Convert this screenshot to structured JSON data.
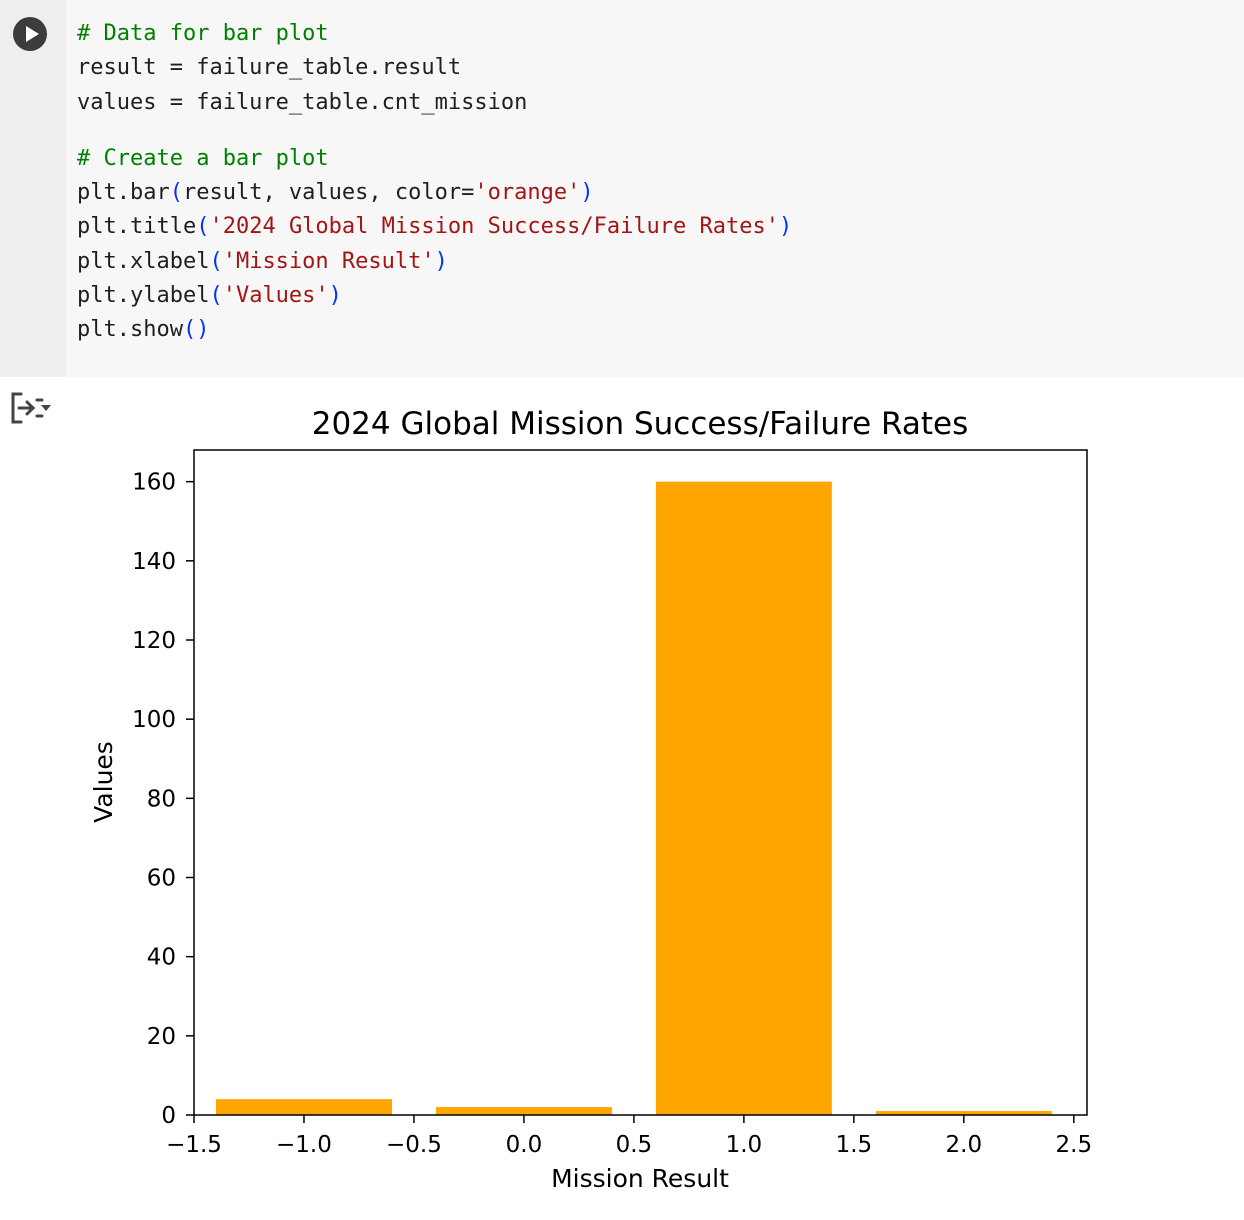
{
  "code_cell": {
    "lines": [
      [
        {
          "t": "# Data for bar plot",
          "c": "cm"
        }
      ],
      [
        {
          "t": "result = failure_table.result",
          "c": ""
        }
      ],
      [
        {
          "t": "values = failure_table.cnt_mission",
          "c": ""
        }
      ],
      [],
      [
        {
          "t": "# Create a bar plot",
          "c": "cm"
        }
      ],
      [
        {
          "t": "plt.bar",
          "c": ""
        },
        {
          "t": "(",
          "c": "pr"
        },
        {
          "t": "result, values, color=",
          "c": ""
        },
        {
          "t": "'orange'",
          "c": "st"
        },
        {
          "t": ")",
          "c": "pr"
        }
      ],
      [
        {
          "t": "plt.title",
          "c": ""
        },
        {
          "t": "(",
          "c": "pr"
        },
        {
          "t": "'2024 Global Mission Success/Failure Rates'",
          "c": "st"
        },
        {
          "t": ")",
          "c": "pr"
        }
      ],
      [
        {
          "t": "plt.xlabel",
          "c": ""
        },
        {
          "t": "(",
          "c": "pr"
        },
        {
          "t": "'Mission Result'",
          "c": "st"
        },
        {
          "t": ")",
          "c": "pr"
        }
      ],
      [
        {
          "t": "plt.ylabel",
          "c": ""
        },
        {
          "t": "(",
          "c": "pr"
        },
        {
          "t": "'Values'",
          "c": "st"
        },
        {
          "t": ")",
          "c": "pr"
        }
      ],
      [
        {
          "t": "plt.show",
          "c": ""
        },
        {
          "t": "()",
          "c": "pr"
        }
      ]
    ]
  },
  "chart_data": {
    "type": "bar",
    "title": "2024 Global Mission Success/Failure Rates",
    "xlabel": "Mission Result",
    "ylabel": "Values",
    "x": [
      -1,
      0,
      1,
      2
    ],
    "values": [
      4,
      2,
      160,
      1
    ],
    "bar_width": 0.8,
    "bar_color": "#ffa500",
    "xlim": [
      -1.5,
      2.56
    ],
    "ylim": [
      0,
      168
    ],
    "xticks": [
      -1.5,
      -1.0,
      -0.5,
      0.0,
      0.5,
      1.0,
      1.5,
      2.0,
      2.5
    ],
    "xtick_labels": [
      "−1.5",
      "−1.0",
      "−0.5",
      "0.0",
      "0.5",
      "1.0",
      "1.5",
      "2.0",
      "2.5"
    ],
    "yticks": [
      0,
      20,
      40,
      60,
      80,
      100,
      120,
      140,
      160
    ],
    "ytick_labels": [
      "0",
      "20",
      "40",
      "60",
      "80",
      "100",
      "120",
      "140",
      "160"
    ],
    "grid": false,
    "legend": "none"
  }
}
